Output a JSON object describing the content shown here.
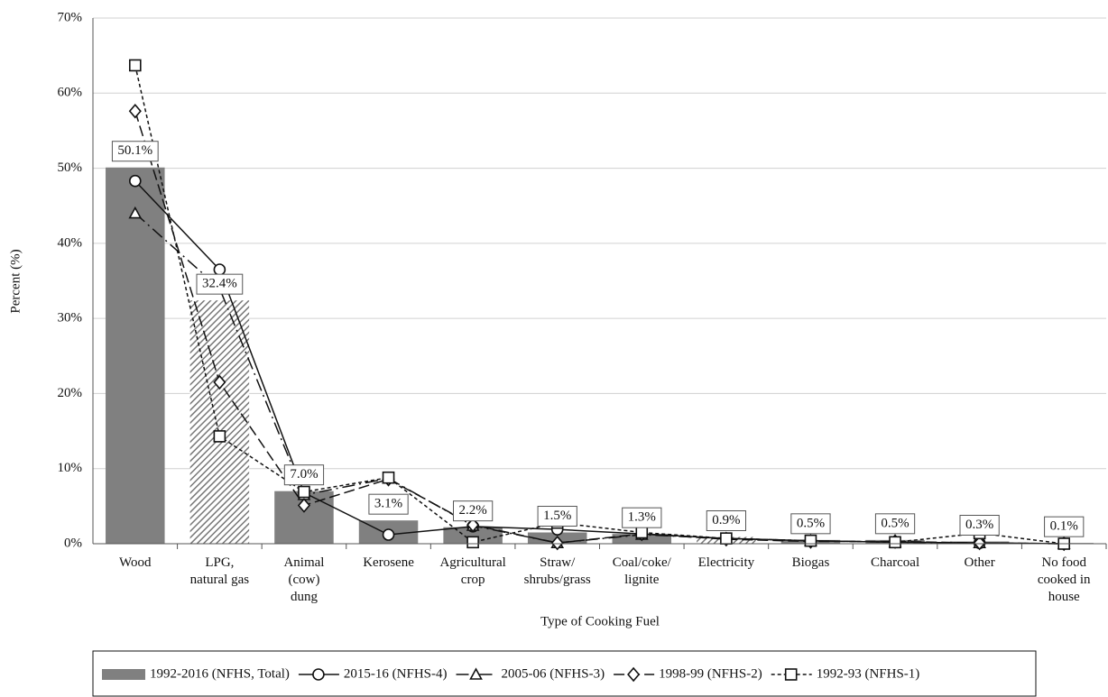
{
  "chart_data": {
    "type": "bar",
    "x_label": "Type of Cooking Fuel",
    "y_label": "Percent (%)",
    "categories": [
      [
        "Wood"
      ],
      [
        "LPG,",
        "natural gas"
      ],
      [
        "Animal",
        "(cow)",
        "dung"
      ],
      [
        "Kerosene"
      ],
      [
        "Agricultural",
        "crop"
      ],
      [
        "Straw/",
        "shrubs/grass"
      ],
      [
        "Coal/coke/",
        "lignite"
      ],
      [
        "Electricity"
      ],
      [
        "Biogas"
      ],
      [
        "Charcoal"
      ],
      [
        "Other"
      ],
      [
        "No food",
        "cooked in",
        "house"
      ]
    ],
    "ylim": [
      0,
      70
    ],
    "yticks": [
      {
        "value": 0,
        "label": "0%"
      },
      {
        "value": 10,
        "label": "10%"
      },
      {
        "value": 20,
        "label": "20%"
      },
      {
        "value": 30,
        "label": "30%"
      },
      {
        "value": 40,
        "label": "40%"
      },
      {
        "value": 50,
        "label": "50%"
      },
      {
        "value": 60,
        "label": "60%"
      },
      {
        "value": 70,
        "label": "70%"
      }
    ],
    "grid": true,
    "series": [
      {
        "name": "1992-2016 (NFHS, Total)",
        "type": "bar",
        "color": "#808080",
        "values": [
          50.1,
          32.4,
          7.0,
          3.1,
          2.2,
          1.5,
          1.3,
          0.9,
          0.5,
          0.5,
          0.3,
          0.1
        ],
        "value_labels": [
          "50.1%",
          "32.4%",
          "7.0%",
          "3.1%",
          "2.2%",
          "1.5%",
          "1.3%",
          "0.9%",
          "0.5%",
          "0.5%",
          "0.3%",
          "0.1%"
        ],
        "hatched": [
          false,
          true,
          false,
          false,
          false,
          false,
          false,
          true,
          false,
          false,
          false,
          false
        ]
      },
      {
        "name": "2015-16 (NFHS-4)",
        "type": "line",
        "color": "#111111",
        "marker": "circle",
        "dash": "none",
        "values": [
          48.3,
          36.5,
          6.8,
          1.2,
          2.3,
          1.9,
          1.3,
          0.7,
          0.4,
          0.2,
          0.1,
          0.0
        ]
      },
      {
        "name": "2005-06 (NFHS-3)",
        "type": "line",
        "color": "#111111",
        "marker": "triangle",
        "dash": "14 5 2 5",
        "values": [
          44.0,
          34.0,
          6.5,
          8.7,
          2.4,
          0.1,
          1.2,
          0.7,
          0.4,
          0.2,
          0.1,
          0.0
        ]
      },
      {
        "name": "1998-99 (NFHS-2)",
        "type": "line",
        "color": "#111111",
        "marker": "diamond",
        "dash": "12 5",
        "values": [
          57.6,
          21.5,
          5.1,
          8.6,
          2.5,
          0.1,
          1.3,
          0.6,
          0.3,
          0.3,
          0.1,
          0.0
        ]
      },
      {
        "name": "1992-93 (NFHS-1)",
        "type": "line",
        "color": "#111111",
        "marker": "square",
        "dash": "4 3",
        "values": [
          63.7,
          14.3,
          6.9,
          8.8,
          0.2,
          2.8,
          1.5,
          0.7,
          0.4,
          0.2,
          1.4,
          0.0
        ]
      }
    ]
  }
}
